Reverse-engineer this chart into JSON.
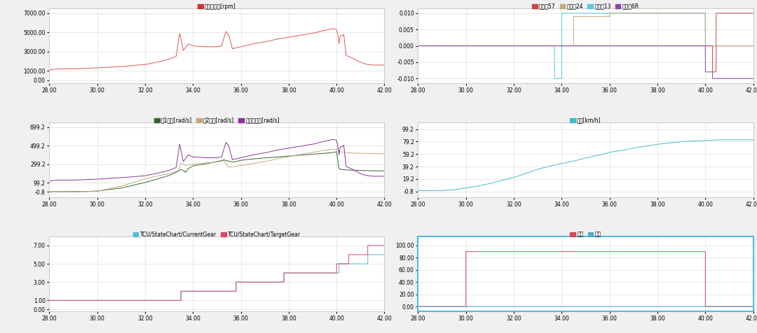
{
  "x_range": [
    28.0,
    42.0
  ],
  "x_ticks": [
    28.0,
    30.0,
    32.0,
    34.0,
    36.0,
    38.0,
    40.0,
    42.0
  ],
  "x_tick_labels": [
    "28.00",
    "30.00",
    "32.00",
    "34.00",
    "36.00",
    "38.00",
    "40.00",
    "42.00"
  ],
  "panel1_ylim": [
    -300,
    7500
  ],
  "panel1_yticks": [
    0,
    1000,
    3000,
    5000,
    7000
  ],
  "panel1_ytick_labels": [
    "0.00",
    "1000.00",
    "3000.00",
    "5000.00",
    "7000.00"
  ],
  "panel1_color": "#e05555",
  "panel1_legend_label": "发动机转速[rpm]",
  "panel1_legend_color": "#cc3333",
  "panel2_ylim": [
    -0.0115,
    0.0115
  ],
  "panel2_yticks": [
    -0.01,
    -0.005,
    0.0,
    0.005,
    0.01
  ],
  "panel2_ytick_labels": [
    "-0.010",
    "-0.005",
    "0.000",
    "0.005",
    "0.010"
  ],
  "panel2_color57": "#cc4444",
  "panel2_color24": "#c8a87a",
  "panel2_color13": "#55ccdd",
  "panel2_color6R": "#8844aa",
  "panel2_legend": [
    "同步器57",
    "同步器24",
    "同步器13",
    "同步器6R"
  ],
  "panel3_ylim": [
    -60,
    750
  ],
  "panel3_yticks": [
    -0.8,
    99.2,
    299.2,
    499.2,
    699.2
  ],
  "panel3_ytick_labels": [
    "-0.8",
    "99.2",
    "299.2",
    "499.2",
    "699.2"
  ],
  "panel3_color1": "#336633",
  "panel3_color2": "#c8a87a",
  "panel3_color3": "#883399",
  "panel3_legend": [
    "轴1转速[rad/s]",
    "轴2转速[rad/s]",
    "发动机转速[rad/s]"
  ],
  "panel4_ylim": [
    -10,
    110
  ],
  "panel4_yticks": [
    -0.8,
    19.2,
    39.2,
    59.2,
    79.2,
    99.2
  ],
  "panel4_ytick_labels": [
    "-0.8",
    "19.2",
    "39.2",
    "59.2",
    "79.2",
    "99.2"
  ],
  "panel4_color": "#44bbcc",
  "panel4_legend": "车速[km/h]",
  "panel5_ylim": [
    -0.2,
    8.0
  ],
  "panel5_yticks": [
    0.0,
    1.0,
    3.0,
    5.0,
    7.0
  ],
  "panel5_ytick_labels": [
    "0.00",
    "1.00",
    "3.00",
    "5.00",
    "7.00"
  ],
  "panel5_color_current": "#55bbdd",
  "panel5_color_target": "#dd4466",
  "panel5_legend": [
    "TCU/StateChart/CurrentGear",
    "TCU/StateChart/TargetGear"
  ],
  "panel6_ylim": [
    -8,
    115
  ],
  "panel6_yticks": [
    0.0,
    20.0,
    40.0,
    60.0,
    80.0,
    100.0
  ],
  "panel6_ytick_labels": [
    "0.00",
    "20.00",
    "40.00",
    "60.00",
    "80.00",
    "100.00"
  ],
  "panel6_color_throttle": "#dd4455",
  "panel6_color_brake": "#55aacc",
  "panel6_legend": [
    "油门",
    "刹车"
  ],
  "bg_color": "#f0f0f0",
  "grid_color": "#dddddd",
  "panel_bg": "#ffffff",
  "highlight_border_color": "#55bbdd",
  "normal_border_color": "#cccccc"
}
